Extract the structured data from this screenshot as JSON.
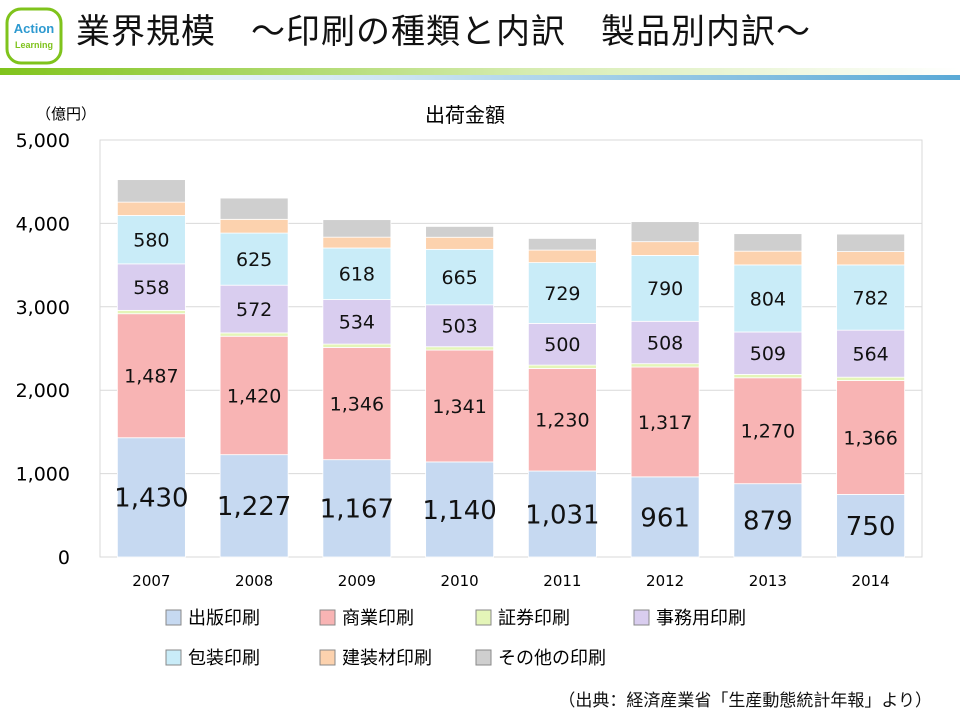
{
  "header": {
    "title": "業界規模　～印刷の種類と内訳　製品別内訳～",
    "logo_text_top": "Action",
    "logo_text_bottom": "Learning"
  },
  "source_note": "（出典：経済産業省「生産動態統計年報」より）",
  "colors": {
    "accent_green": "#7fc31c",
    "accent_blue": "#5aa9d6",
    "gridline": "#d9d9d9"
  },
  "chart_data": {
    "type": "bar",
    "stacked": true,
    "title": "出荷金額",
    "ylabel": "（億円）",
    "xlabel": "",
    "ylim": [
      0,
      5000
    ],
    "yticks": [
      0,
      1000,
      2000,
      3000,
      4000,
      5000
    ],
    "ytick_labels": [
      "0",
      "1,000",
      "2,000",
      "3,000",
      "4,000",
      "5,000"
    ],
    "grid": true,
    "legend_position": "bottom",
    "categories": [
      "2007",
      "2008",
      "2009",
      "2010",
      "2011",
      "2012",
      "2013",
      "2014"
    ],
    "series": [
      {
        "name": "出版印刷",
        "color": "#c6d9f1",
        "label_size": "large",
        "values": [
          1430,
          1227,
          1167,
          1140,
          1031,
          961,
          879,
          750
        ],
        "labels": [
          "1,430",
          "1,227",
          "1,167",
          "1,140",
          "1,031",
          "961",
          "879",
          "750"
        ]
      },
      {
        "name": "商業印刷",
        "color": "#f8b4b4",
        "values": [
          1487,
          1420,
          1346,
          1341,
          1230,
          1317,
          1270,
          1366
        ],
        "labels": [
          "1,487",
          "1,420",
          "1,346",
          "1,341",
          "1,230",
          "1,317",
          "1,270",
          "1,366"
        ]
      },
      {
        "name": "証券印刷",
        "color": "#e4f5b8",
        "values": [
          40,
          40,
          40,
          40,
          40,
          40,
          40,
          40
        ]
      },
      {
        "name": "事務用印刷",
        "color": "#d9cdef",
        "values": [
          558,
          572,
          534,
          503,
          500,
          508,
          509,
          564
        ],
        "labels": [
          "558",
          "572",
          "534",
          "503",
          "500",
          "508",
          "509",
          "564"
        ]
      },
      {
        "name": "包装印刷",
        "color": "#c9ecf8",
        "values": [
          580,
          625,
          618,
          665,
          729,
          790,
          804,
          782
        ],
        "labels": [
          "580",
          "625",
          "618",
          "665",
          "729",
          "790",
          "804",
          "782"
        ]
      },
      {
        "name": "建装材印刷",
        "color": "#fcd2ae",
        "values": [
          160,
          165,
          130,
          145,
          150,
          165,
          165,
          160
        ]
      },
      {
        "name": "その他の印刷",
        "color": "#cfcfcf",
        "values": [
          270,
          255,
          210,
          130,
          140,
          240,
          210,
          210
        ]
      }
    ]
  }
}
